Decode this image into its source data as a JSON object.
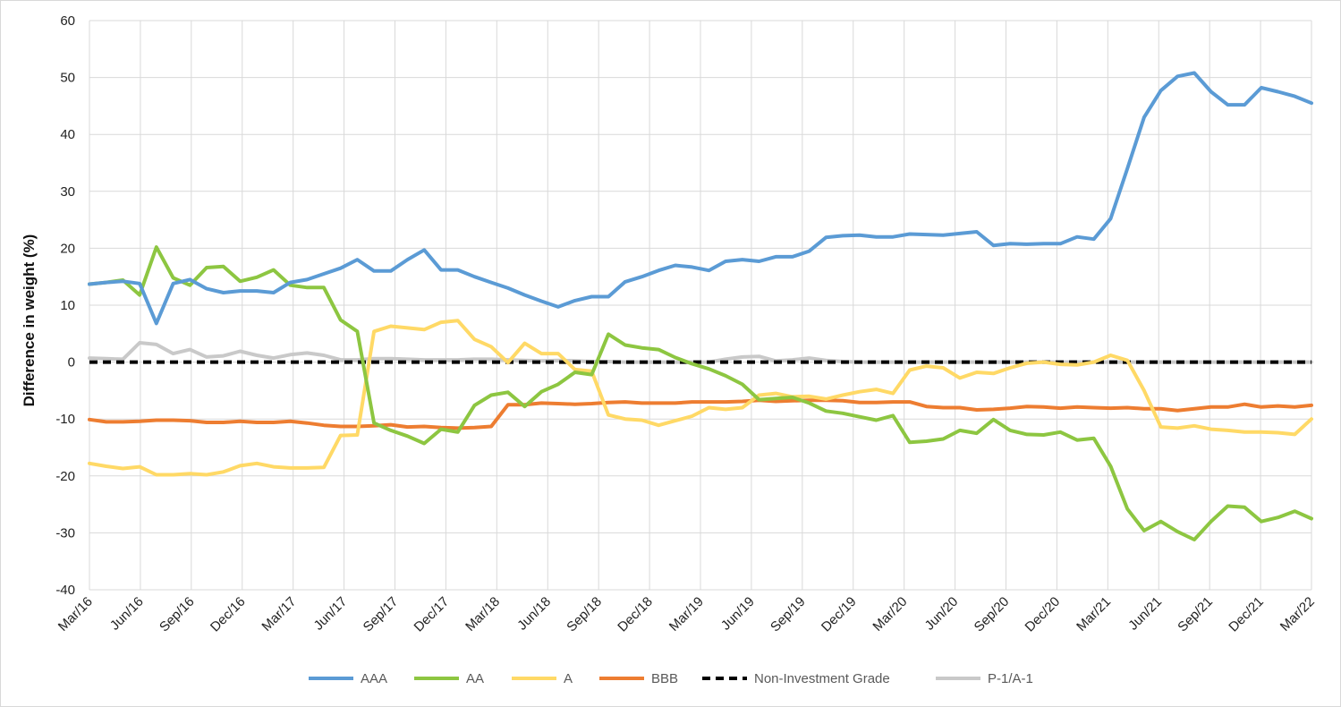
{
  "chart_data": {
    "type": "line",
    "title": "",
    "xlabel": "",
    "ylabel": "Difference in weight (%)",
    "ylim": [
      -40,
      60
    ],
    "yticks": [
      60,
      50,
      40,
      30,
      20,
      10,
      0,
      -10,
      -20,
      -30,
      -40
    ],
    "grid": true,
    "legend_position": "bottom",
    "x_tick_labels": [
      "Mar/16",
      "Jun/16",
      "Sep/16",
      "Dec/16",
      "Mar/17",
      "Jun/17",
      "Sep/17",
      "Dec/17",
      "Mar/18",
      "Jun/18",
      "Sep/18",
      "Dec/18",
      "Mar/19",
      "Jun/19",
      "Sep/19",
      "Dec/19",
      "Mar/20",
      "Jun/20",
      "Sep/20",
      "Dec/20",
      "Mar/21",
      "Jun/21",
      "Sep/21",
      "Dec/21",
      "Mar/22"
    ],
    "x_start": "Mar/16",
    "x_end": "Mar/22",
    "series": [
      {
        "name": "AAA",
        "color": "#5b9bd5",
        "dash": "solid",
        "values": [
          13.7,
          14.0,
          14.2,
          13.8,
          6.8,
          13.8,
          14.5,
          12.9,
          12.2,
          12.5,
          12.5,
          12.2,
          14.0,
          14.5,
          15.5,
          16.5,
          18.0,
          16.0,
          16.0,
          18.0,
          19.7,
          16.2,
          16.2,
          15.0,
          14.0,
          13.0,
          11.8,
          10.7,
          9.7,
          10.8,
          11.5,
          11.5,
          14.1,
          15.0,
          16.1,
          17.0,
          16.7,
          16.1,
          17.7,
          18.0,
          17.7,
          18.5,
          18.5,
          19.5,
          21.9,
          22.2,
          22.3,
          22.0,
          22.0,
          22.5,
          22.4,
          22.3,
          22.6,
          22.9,
          20.5,
          20.8,
          20.7,
          20.8,
          20.8,
          22.0,
          21.6,
          25.2,
          34.0,
          43.0,
          47.7,
          50.2,
          50.8,
          47.5,
          45.2,
          45.2,
          48.2,
          47.5,
          46.7,
          45.5
        ]
      },
      {
        "name": "AA",
        "color": "#8dc641",
        "dash": "solid",
        "values": [
          13.7,
          14.0,
          14.4,
          11.8,
          20.2,
          14.8,
          13.5,
          16.6,
          16.8,
          14.2,
          14.9,
          16.2,
          13.5,
          13.1,
          13.1,
          7.4,
          5.4,
          -10.7,
          -12.0,
          -13.0,
          -14.3,
          -11.8,
          -12.3,
          -7.6,
          -5.8,
          -5.3,
          -7.8,
          -5.2,
          -3.9,
          -1.8,
          -2.2,
          4.9,
          3.0,
          2.5,
          2.2,
          0.8,
          -0.3,
          -1.2,
          -2.4,
          -3.9,
          -6.6,
          -6.4,
          -6.2,
          -7.2,
          -8.6,
          -9.0,
          -9.6,
          -10.2,
          -9.4,
          -14.1,
          -13.9,
          -13.5,
          -12.0,
          -12.5,
          -10.1,
          -12.0,
          -12.7,
          -12.8,
          -12.3,
          -13.7,
          -13.4,
          -18.3,
          -25.8,
          -29.6,
          -28.0,
          -29.8,
          -31.2,
          -28.0,
          -25.3,
          -25.5,
          -28.0,
          -27.3,
          -26.2,
          -27.5
        ]
      },
      {
        "name": "A",
        "color": "#ffd966",
        "dash": "solid",
        "values": [
          -17.8,
          -18.3,
          -18.7,
          -18.4,
          -19.8,
          -19.8,
          -19.6,
          -19.8,
          -19.3,
          -18.2,
          -17.8,
          -18.4,
          -18.6,
          -18.6,
          -18.5,
          -12.9,
          -12.8,
          5.4,
          6.3,
          6.0,
          5.7,
          7.0,
          7.3,
          4.0,
          2.7,
          -0.1,
          3.3,
          1.5,
          1.5,
          -1.3,
          -1.6,
          -9.3,
          -10.0,
          -10.2,
          -11.1,
          -10.3,
          -9.5,
          -8.0,
          -8.3,
          -8.0,
          -5.8,
          -5.5,
          -6.1,
          -6.0,
          -6.5,
          -5.8,
          -5.2,
          -4.8,
          -5.5,
          -1.4,
          -0.7,
          -1.0,
          -2.8,
          -1.8,
          -2.0,
          -1.0,
          -0.2,
          0.0,
          -0.4,
          -0.5,
          0.0,
          1.2,
          0.3,
          -5.0,
          -11.4,
          -11.6,
          -11.2,
          -11.8,
          -12.0,
          -12.3,
          -12.3,
          -12.4,
          -12.7,
          -10.0
        ]
      },
      {
        "name": "BBB",
        "color": "#ed7d31",
        "dash": "solid",
        "values": [
          -10.1,
          -10.5,
          -10.5,
          -10.4,
          -10.2,
          -10.2,
          -10.3,
          -10.6,
          -10.6,
          -10.4,
          -10.6,
          -10.6,
          -10.4,
          -10.7,
          -11.1,
          -11.3,
          -11.3,
          -11.2,
          -11.0,
          -11.4,
          -11.3,
          -11.5,
          -11.6,
          -11.5,
          -11.3,
          -7.5,
          -7.5,
          -7.2,
          -7.3,
          -7.4,
          -7.3,
          -7.1,
          -7.0,
          -7.2,
          -7.2,
          -7.2,
          -7.0,
          -7.0,
          -7.0,
          -6.9,
          -6.7,
          -6.9,
          -6.8,
          -6.7,
          -6.7,
          -6.8,
          -7.1,
          -7.1,
          -7.0,
          -7.0,
          -7.8,
          -8.0,
          -8.0,
          -8.4,
          -8.3,
          -8.1,
          -7.8,
          -7.9,
          -8.1,
          -7.9,
          -8.0,
          -8.1,
          -8.0,
          -8.2,
          -8.2,
          -8.5,
          -8.2,
          -7.9,
          -7.9,
          -7.4,
          -7.9,
          -7.7,
          -7.9,
          -7.6
        ]
      },
      {
        "name": "Non-Investment Grade",
        "color": "#000000",
        "dash": "dashed",
        "values": [
          0,
          0,
          0,
          0,
          0,
          0,
          0,
          0,
          0,
          0,
          0,
          0,
          0,
          0,
          0,
          0,
          0,
          0,
          0,
          0,
          0,
          0,
          0,
          0,
          0,
          0,
          0,
          0,
          0,
          0,
          0,
          0,
          0,
          0,
          0,
          0,
          0,
          0,
          0,
          0,
          0,
          0,
          0,
          0,
          0,
          0,
          0,
          0,
          0,
          0,
          0,
          0,
          0,
          0,
          0,
          0,
          0,
          0,
          0,
          0,
          0,
          0,
          0,
          0,
          0,
          0,
          0,
          0,
          0,
          0,
          0,
          0,
          0,
          0
        ]
      },
      {
        "name": "P-1/A-1",
        "color": "#c9c9c9",
        "dash": "solid",
        "values": [
          0.7,
          0.6,
          0.5,
          3.4,
          3.1,
          1.5,
          2.2,
          0.9,
          1.1,
          1.9,
          1.2,
          0.7,
          1.3,
          1.6,
          1.2,
          0.4,
          0.4,
          0.6,
          0.6,
          0.5,
          0.4,
          0.4,
          0.4,
          0.5,
          0.5,
          0.4,
          0.3,
          0.2,
          0.3,
          0.2,
          0.1,
          0.1,
          0.0,
          0.0,
          0.0,
          0.0,
          0.0,
          0.0,
          0.5,
          0.9,
          1.0,
          0.2,
          0.4,
          0.7,
          0.3,
          0.1,
          0.0,
          0.0,
          0.0,
          0.0,
          0.0,
          0.0,
          0.0,
          0.0,
          0.0,
          0.0,
          0.0,
          0.0,
          0.0,
          0.0,
          0.0,
          0.0,
          0.0,
          0.0,
          0.0,
          0.0,
          0.0,
          0.0,
          0.0,
          0.0,
          0.0,
          0.0,
          0.0,
          0.0
        ]
      }
    ]
  }
}
